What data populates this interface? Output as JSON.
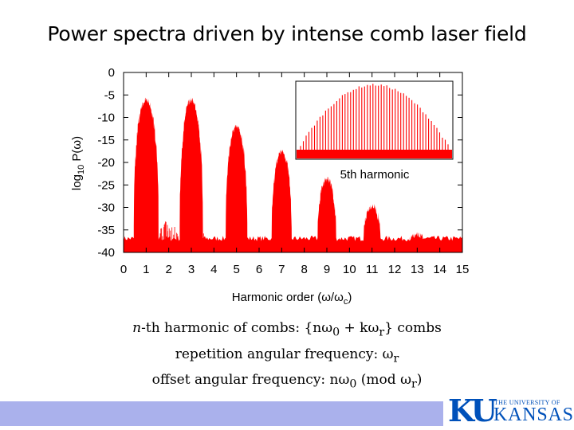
{
  "slide": {
    "title": "Power spectra driven by intense comb laser field"
  },
  "chart_data": {
    "type": "line",
    "xlabel": "Harmonic order (ω/ω",
    "xlabel_sub": "c",
    "xlabel_end": ")",
    "ylabel_pre": "log",
    "ylabel_sub": "10",
    "ylabel_post": " P(ω)",
    "xlim": [
      0,
      15
    ],
    "ylim": [
      -40,
      0
    ],
    "x_ticks": [
      0,
      1,
      2,
      3,
      4,
      5,
      6,
      7,
      8,
      9,
      10,
      11,
      12,
      13,
      14,
      15
    ],
    "y_ticks": [
      0,
      -5,
      -10,
      -15,
      -20,
      -25,
      -30,
      -35,
      -40
    ],
    "color": "#ff0000",
    "noise_floor": -38.5,
    "peaks": [
      {
        "harmonic": 1,
        "peak": -5.5
      },
      {
        "harmonic": 3,
        "peak": -5.5
      },
      {
        "harmonic": 5,
        "peak": -11.5
      },
      {
        "harmonic": 7,
        "peak": -17
      },
      {
        "harmonic": 9,
        "peak": -23
      },
      {
        "harmonic": 11,
        "peak": -29
      },
      {
        "harmonic": 13,
        "peak": -35.5
      }
    ],
    "inset": {
      "label": "5th harmonic",
      "comb_lines": 54
    }
  },
  "equations": {
    "line1": {
      "pre": "n",
      "text": "-th harmonic of combs: {nω",
      "s1": "0",
      "mid": " + kω",
      "s2": "r",
      "end": "} combs"
    },
    "line2": {
      "text": "repetition angular frequency: ω",
      "s1": "r"
    },
    "line3": {
      "text": "offset angular frequency: nω",
      "s1": "0",
      "mid": "   (mod ω",
      "s2": "r",
      "end": ")"
    }
  },
  "logo": {
    "initials": "KU",
    "small": "THE UNIVERSITY OF",
    "name": "KANSAS"
  }
}
